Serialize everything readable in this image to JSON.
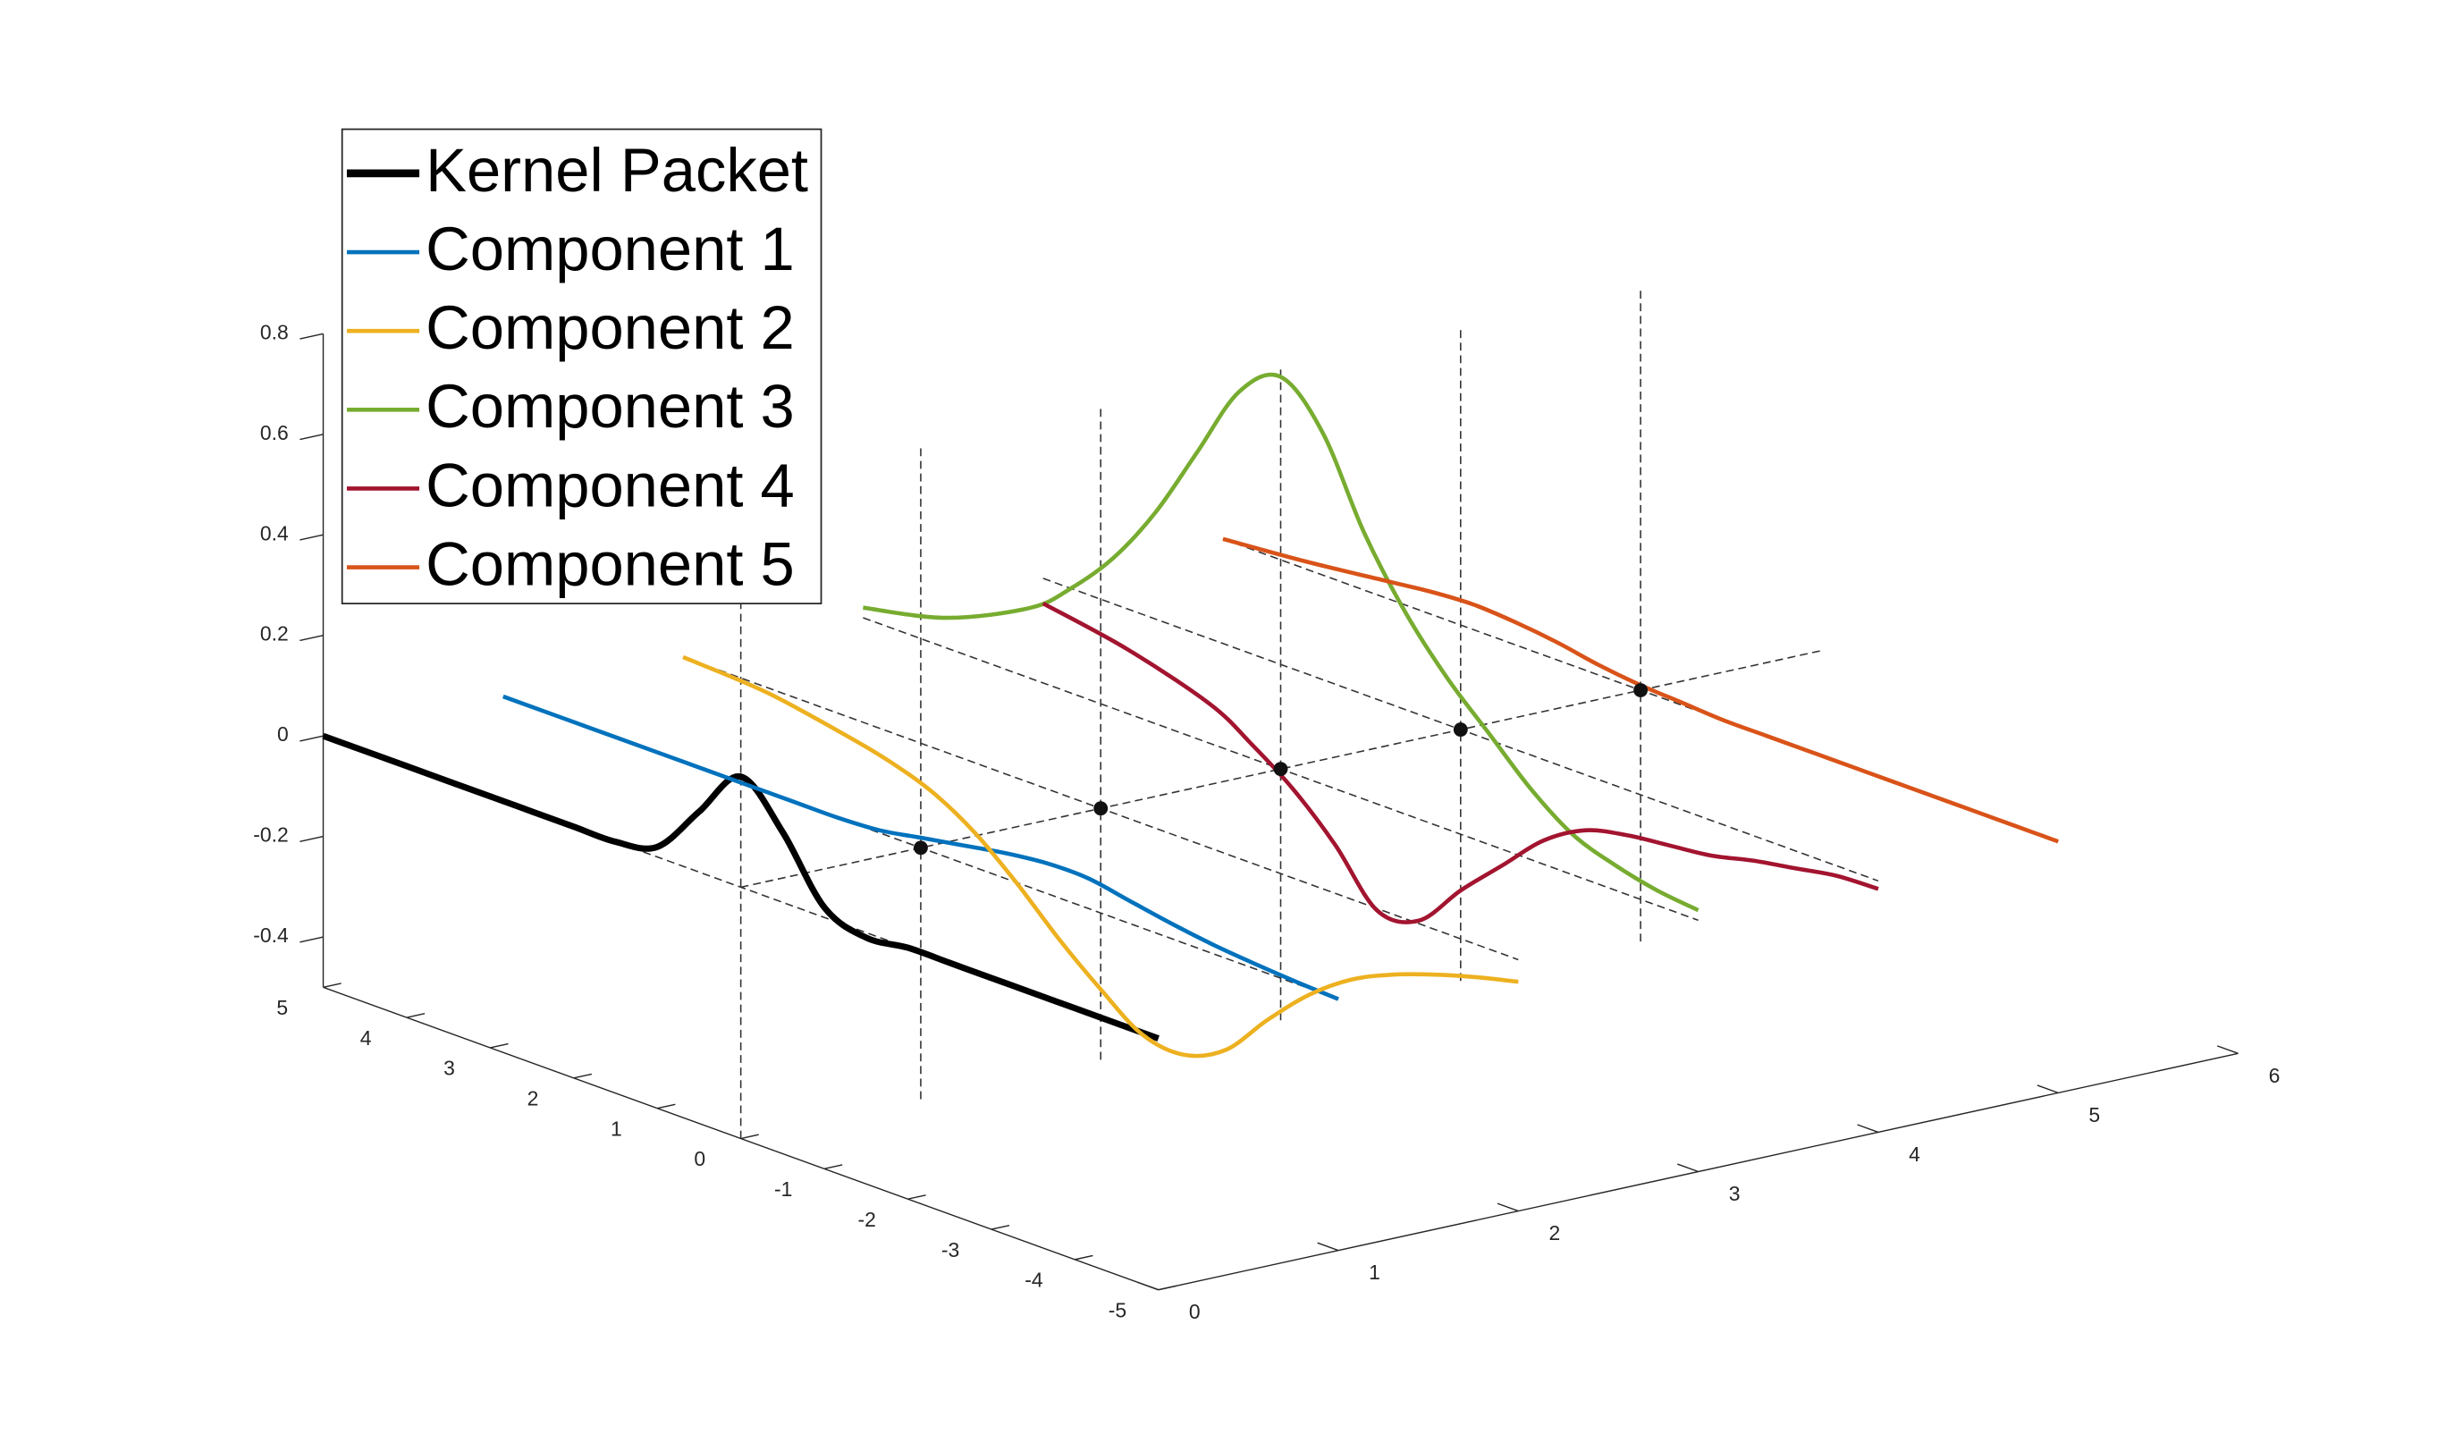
{
  "chart_data": {
    "type": "line3d",
    "y": [
      5,
      4,
      3,
      2.5,
      2,
      1.5,
      1,
      0.5,
      0,
      -0.5,
      -1,
      -1.5,
      -2,
      -2.5,
      -3,
      -3.5,
      -4,
      -4.5,
      -5
    ],
    "series": [
      {
        "name": "Kernel Packet",
        "color": "#000000",
        "x": 0,
        "z": [
          0,
          0,
          0,
          0,
          0,
          0,
          0.02,
          0.12,
          0.22,
          0.14,
          0.02,
          -0.01,
          0,
          0,
          0,
          0,
          0,
          0,
          0
        ]
      },
      {
        "name": "Component 1",
        "color": "#0072BD",
        "x": 1,
        "z": [
          0,
          0,
          0,
          0,
          0,
          0,
          0,
          0.005,
          0.02,
          0.035,
          0.05,
          0.06,
          0.06,
          0.045,
          0.03,
          0.018,
          0.01,
          0.004,
          0
        ]
      },
      {
        "name": "Component 2",
        "color": "#EDB120",
        "x": 2,
        "z": [
          0,
          -0.01,
          -0.04,
          -0.06,
          -0.09,
          -0.14,
          -0.21,
          -0.29,
          -0.36,
          -0.42,
          -0.43,
          -0.39,
          -0.3,
          -0.22,
          -0.16,
          -0.12,
          -0.09,
          -0.065,
          -0.044
        ]
      },
      {
        "name": "Component 3",
        "color": "#77AC30",
        "x": 3,
        "z": [
          0.02,
          0.06,
          0.14,
          0.21,
          0.3,
          0.42,
          0.57,
          0.72,
          0.78,
          0.7,
          0.53,
          0.4,
          0.3,
          0.22,
          0.14,
          0.08,
          0.05,
          0.03,
          0.02
        ]
      },
      {
        "name": "Component 4",
        "color": "#A2142F",
        "x": 4,
        "z": [
          -0.05,
          -0.08,
          -0.13,
          -0.18,
          -0.24,
          -0.32,
          -0.42,
          -0.41,
          -0.32,
          -0.24,
          -0.16,
          -0.11,
          -0.09,
          -0.08,
          -0.07,
          -0.05,
          -0.035,
          -0.02,
          -0.016
        ]
      },
      {
        "name": "Component 5",
        "color": "#D95319",
        "x": 5,
        "z": [
          0,
          0.015,
          0.035,
          0.045,
          0.05,
          0.045,
          0.035,
          0.02,
          0.01,
          0.005,
          0,
          0,
          0,
          0,
          0,
          0,
          0,
          0,
          0
        ]
      }
    ],
    "points": {
      "color": "#111111",
      "x": [
        1,
        2,
        3,
        4,
        5
      ],
      "y": [
        0,
        0,
        0,
        0,
        0
      ],
      "z": [
        0,
        0,
        0,
        0,
        0
      ]
    },
    "xlim": [
      0,
      6
    ],
    "ylim": [
      -5,
      5
    ],
    "zlim": [
      -0.5,
      0.8
    ],
    "xticks": [
      0,
      1,
      2,
      3,
      4,
      5,
      6
    ],
    "yticks": [
      -5,
      -4,
      -3,
      -2,
      -1,
      0,
      1,
      2,
      3,
      4,
      5
    ],
    "zticks": [
      -0.4,
      -0.2,
      0,
      0.2,
      0.4,
      0.6,
      0.8
    ],
    "legend": "upper left"
  }
}
